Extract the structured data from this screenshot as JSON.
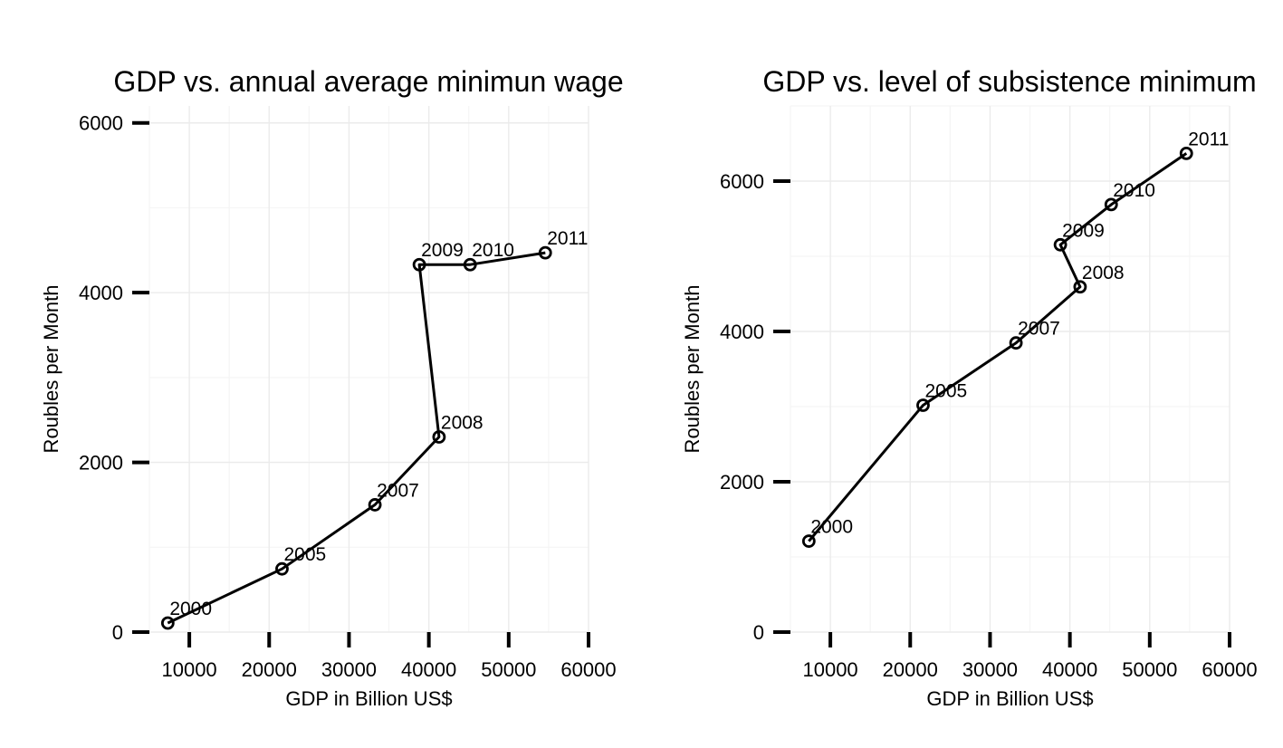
{
  "chart_data": [
    {
      "type": "line",
      "title": "GDP vs. annual average minimun wage",
      "xlabel": "GDP in Billion US$",
      "ylabel": "Roubles per Month",
      "xlim": [
        5000,
        60000
      ],
      "ylim": [
        0,
        6200
      ],
      "xticks": [
        10000,
        20000,
        30000,
        40000,
        50000,
        60000
      ],
      "yticks": [
        0,
        2000,
        4000,
        6000
      ],
      "grid": true,
      "series": [
        {
          "points": [
            {
              "x": 7306,
              "y": 107,
              "label": "2000"
            },
            {
              "x": 21610,
              "y": 745,
              "label": "2005"
            },
            {
              "x": 33248,
              "y": 1500,
              "label": "2007"
            },
            {
              "x": 41277,
              "y": 2300,
              "label": "2008"
            },
            {
              "x": 38807,
              "y": 4330,
              "label": "2009"
            },
            {
              "x": 45173,
              "y": 4330,
              "label": "2010"
            },
            {
              "x": 54586,
              "y": 4470,
              "label": "2011"
            }
          ]
        }
      ]
    },
    {
      "type": "line",
      "title": "GDP vs. level of subsistence minimum",
      "xlabel": "GDP in Billion US$",
      "ylabel": "Roubles per Month",
      "xlim": [
        5000,
        60000
      ],
      "ylim": [
        0,
        7000
      ],
      "xticks": [
        10000,
        20000,
        30000,
        40000,
        50000,
        60000
      ],
      "yticks": [
        0,
        2000,
        4000,
        6000
      ],
      "grid": true,
      "series": [
        {
          "points": [
            {
              "x": 7306,
              "y": 1210,
              "label": "2000"
            },
            {
              "x": 21610,
              "y": 3018,
              "label": "2005"
            },
            {
              "x": 33248,
              "y": 3847,
              "label": "2007"
            },
            {
              "x": 41277,
              "y": 4593,
              "label": "2008"
            },
            {
              "x": 38807,
              "y": 5153,
              "label": "2009"
            },
            {
              "x": 45173,
              "y": 5688,
              "label": "2010"
            },
            {
              "x": 54586,
              "y": 6369,
              "label": "2011"
            }
          ]
        }
      ]
    }
  ]
}
